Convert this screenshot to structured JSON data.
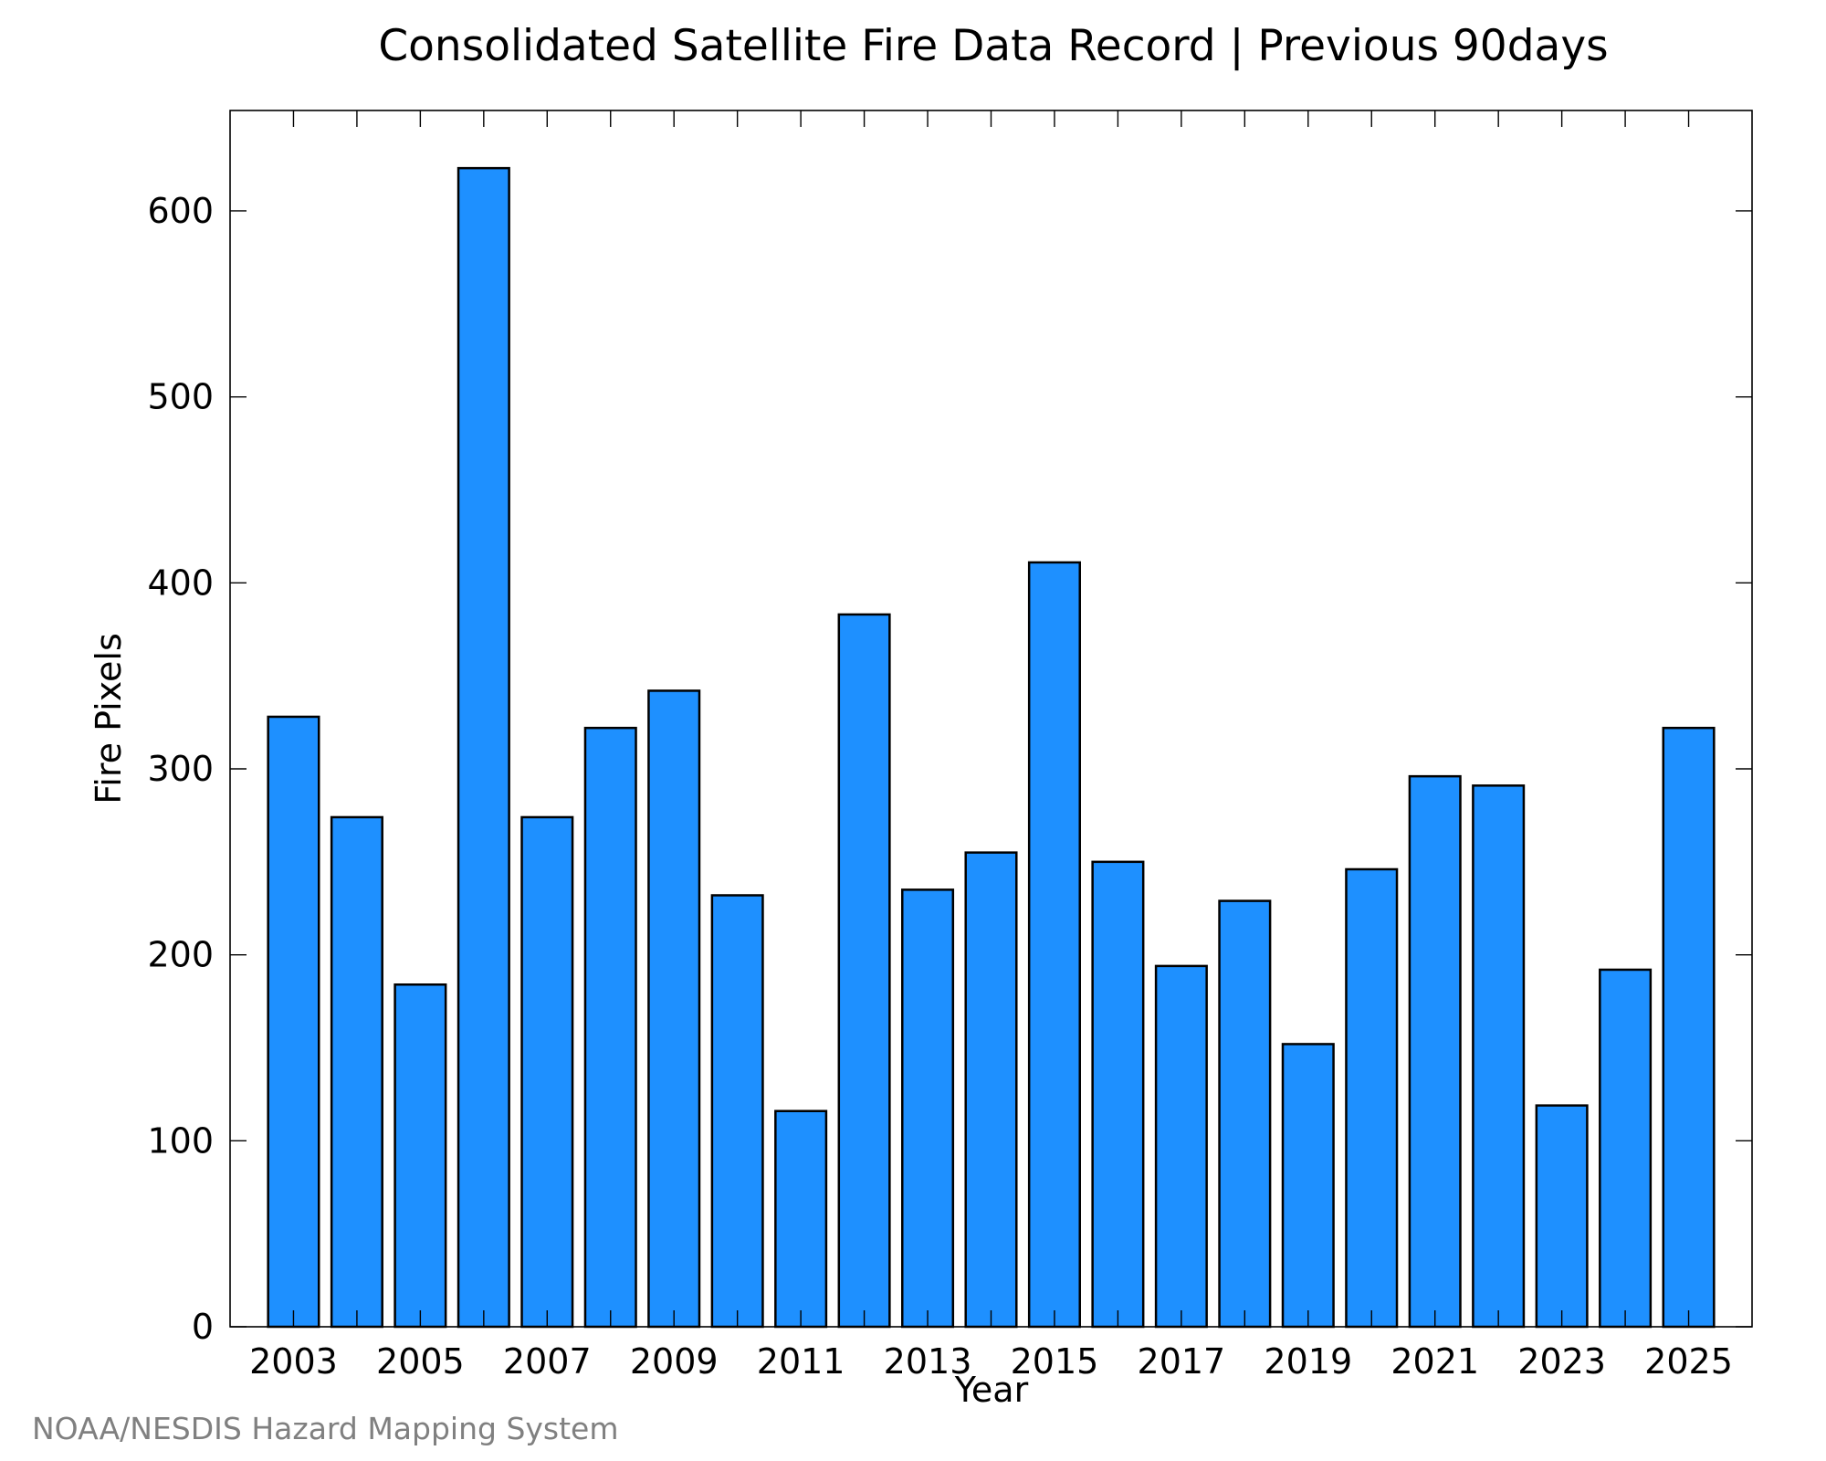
{
  "chart_data": {
    "type": "bar",
    "title": "Consolidated Satellite Fire Data Record | Previous 90days",
    "xlabel": "Year",
    "ylabel": "Fire Pixels",
    "x": [
      2003,
      2004,
      2005,
      2006,
      2007,
      2008,
      2009,
      2010,
      2011,
      2012,
      2013,
      2014,
      2015,
      2016,
      2017,
      2018,
      2019,
      2020,
      2021,
      2022,
      2023,
      2024,
      2025
    ],
    "values": [
      328,
      274,
      184,
      623,
      274,
      322,
      342,
      232,
      116,
      383,
      235,
      255,
      411,
      250,
      194,
      229,
      152,
      246,
      296,
      291,
      119,
      192,
      322
    ],
    "x_ticks": [
      2003,
      2005,
      2007,
      2009,
      2011,
      2013,
      2015,
      2017,
      2019,
      2021,
      2023,
      2025
    ],
    "y_ticks": [
      0,
      100,
      200,
      300,
      400,
      500,
      600
    ],
    "xlim": [
      2002.0,
      2026.0
    ],
    "ylim": [
      0,
      654
    ],
    "grid": false,
    "bar_color": "#1E90FF",
    "bar_edge_color": "#000000"
  },
  "credit": "NOAA/NESDIS Hazard Mapping System"
}
